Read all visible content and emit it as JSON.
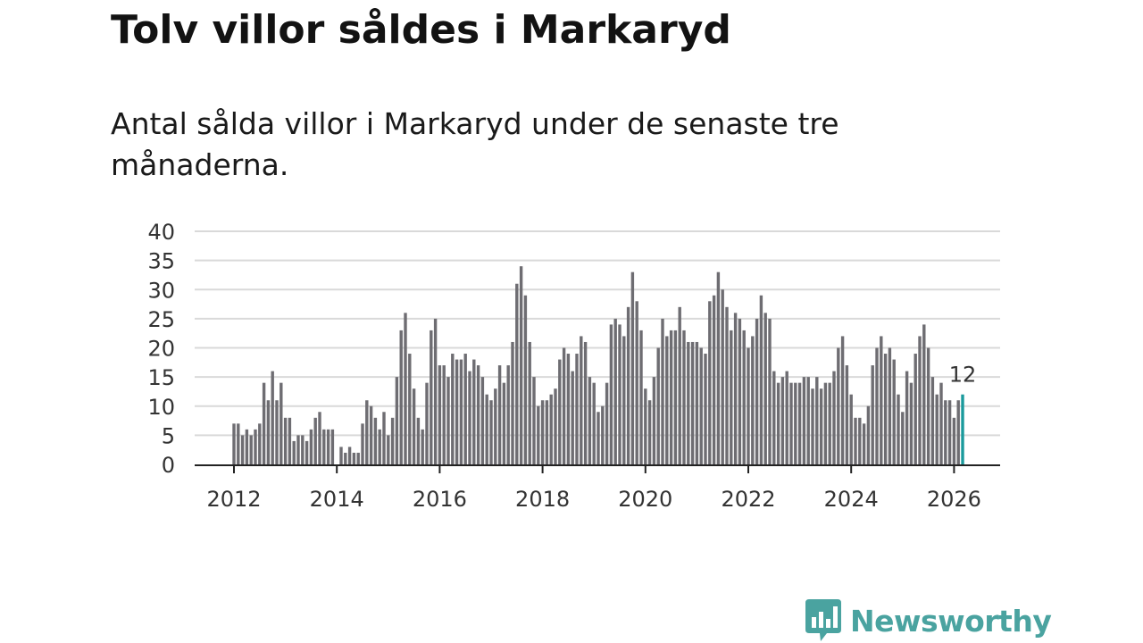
{
  "header": {
    "title": "Tolv villor såldes i Markaryd",
    "subtitle": "Antal sålda villor i Markaryd under de senaste tre månaderna."
  },
  "brand": {
    "name": "Newsworthy",
    "color": "#4aa3a0",
    "icon": "newsworthy-bar-chart-icon"
  },
  "chart_data": {
    "type": "bar",
    "title": "Tolv villor såldes i Markaryd",
    "xlabel": "",
    "ylabel": "",
    "ylim": [
      0,
      40
    ],
    "yticks": [
      0,
      5,
      10,
      15,
      20,
      25,
      30,
      35,
      40
    ],
    "xticks": [
      "2012",
      "2014",
      "2016",
      "2018",
      "2020",
      "2022",
      "2024",
      "2026"
    ],
    "grid": true,
    "start": "2012-01",
    "bar_color": "#6e6d72",
    "highlight_color": "#1b9a9c",
    "highlight_label": "12",
    "values": [
      7,
      7,
      5,
      6,
      5,
      6,
      7,
      14,
      11,
      16,
      11,
      14,
      8,
      8,
      4,
      5,
      5,
      4,
      6,
      8,
      9,
      6,
      6,
      6,
      0,
      3,
      2,
      3,
      2,
      2,
      7,
      11,
      10,
      8,
      6,
      9,
      5,
      8,
      15,
      23,
      26,
      19,
      13,
      8,
      6,
      14,
      23,
      25,
      17,
      17,
      15,
      19,
      18,
      18,
      19,
      16,
      18,
      17,
      15,
      12,
      11,
      13,
      17,
      14,
      17,
      21,
      31,
      34,
      29,
      21,
      15,
      10,
      11,
      11,
      12,
      13,
      18,
      20,
      19,
      16,
      19,
      22,
      21,
      15,
      14,
      9,
      10,
      14,
      24,
      25,
      24,
      22,
      27,
      33,
      28,
      23,
      13,
      11,
      15,
      20,
      25,
      22,
      23,
      23,
      27,
      23,
      21,
      21,
      21,
      20,
      19,
      28,
      29,
      33,
      30,
      27,
      23,
      26,
      25,
      23,
      20,
      22,
      25,
      29,
      26,
      25,
      16,
      14,
      15,
      16,
      14,
      14,
      14,
      15,
      15,
      13,
      15,
      13,
      14,
      14,
      16,
      20,
      22,
      17,
      12,
      8,
      8,
      7,
      10,
      17,
      20,
      22,
      19,
      20,
      18,
      12,
      9,
      16,
      14,
      19,
      22,
      24,
      20,
      15,
      12,
      14,
      11,
      11,
      8,
      11,
      12
    ]
  }
}
